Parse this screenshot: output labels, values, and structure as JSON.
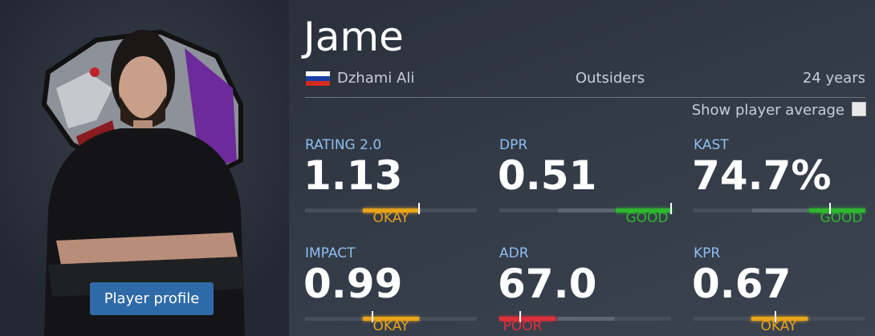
{
  "player": {
    "nickname": "Jame",
    "real_name": "Dzhami Ali",
    "team": "Outsiders",
    "age": "24 years"
  },
  "show_average_label": "Show player average",
  "button": "Player profile",
  "stats": [
    {
      "label": "RATING 2.0",
      "value": "1.13",
      "rating": "OKAY"
    },
    {
      "label": "DPR",
      "value": "0.51",
      "rating": "GOOD"
    },
    {
      "label": "KAST",
      "value": "74.7%",
      "rating": "GOOD"
    },
    {
      "label": "IMPACT",
      "value": "0.99",
      "rating": "OKAY"
    },
    {
      "label": "ADR",
      "value": "67.0",
      "rating": "POOR"
    },
    {
      "label": "KPR",
      "value": "0.67",
      "rating": "OKAY"
    }
  ]
}
